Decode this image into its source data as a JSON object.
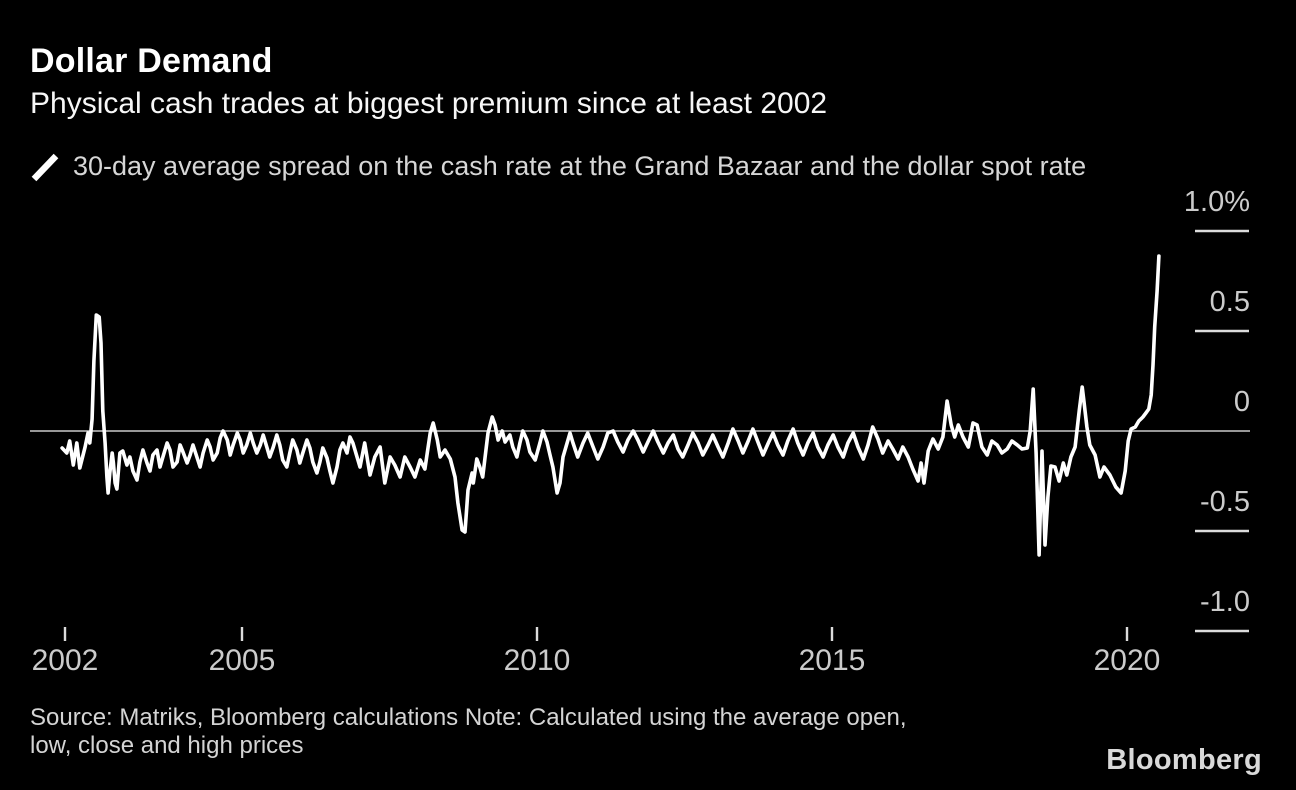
{
  "header": {
    "title": "Dollar Demand",
    "subtitle": "Physical cash trades at biggest premium since at least 2002"
  },
  "legend": {
    "label": "30-day average spread on the cash rate at the Grand Bazaar and the dollar spot rate",
    "marker": "diagonal-line",
    "marker_color": "#ffffff"
  },
  "footer": {
    "source_lines": [
      "Source: Matriks, Bloomberg calculations Note: Calculated using the average open,",
      "low, close and high prices"
    ],
    "logo": "Bloomberg"
  },
  "colors": {
    "background": "#000000",
    "line": "#ffffff",
    "zero_gridline": "#c9c9c9",
    "tick": "#dcdcdc",
    "label": "#cbcbcb"
  },
  "chart_data": {
    "type": "line",
    "title": "Dollar Demand",
    "subtitle": "Physical cash trades at biggest premium since at least 2002",
    "xlabel": "",
    "ylabel": "%",
    "xlim": [
      2001.4,
      2021.1
    ],
    "ylim": [
      -1.0,
      1.0
    ],
    "grid": "zero-line-only",
    "legend_position": "top-left",
    "y_axis": {
      "side": "right",
      "ticks": [
        {
          "value": 1.0,
          "label": "1.0%"
        },
        {
          "value": 0.5,
          "label": "0.5"
        },
        {
          "value": 0,
          "label": "0"
        },
        {
          "value": -0.5,
          "label": "-0.5"
        },
        {
          "value": -1.0,
          "label": "-1.0"
        }
      ]
    },
    "x_axis": {
      "ticks": [
        {
          "value": 2002,
          "label": "2002"
        },
        {
          "value": 2005,
          "label": "2005"
        },
        {
          "value": 2010,
          "label": "2010"
        },
        {
          "value": 2015,
          "label": "2015"
        },
        {
          "value": 2020,
          "label": "2020"
        }
      ]
    },
    "series": [
      {
        "name": "30-day average spread on the cash rate at the Grand Bazaar and the dollar spot rate",
        "color": "#ffffff",
        "points": [
          [
            2001.95,
            -0.085
          ],
          [
            2002.03,
            -0.11
          ],
          [
            2002.08,
            -0.05
          ],
          [
            2002.14,
            -0.17
          ],
          [
            2002.2,
            -0.06
          ],
          [
            2002.25,
            -0.185
          ],
          [
            2002.34,
            -0.08
          ],
          [
            2002.39,
            -0.01
          ],
          [
            2002.42,
            -0.06
          ],
          [
            2002.46,
            0.06
          ],
          [
            2002.49,
            0.35
          ],
          [
            2002.53,
            0.58
          ],
          [
            2002.58,
            0.57
          ],
          [
            2002.61,
            0.44
          ],
          [
            2002.64,
            0.1
          ],
          [
            2002.68,
            -0.06
          ],
          [
            2002.71,
            -0.23
          ],
          [
            2002.73,
            -0.31
          ],
          [
            2002.76,
            -0.21
          ],
          [
            2002.8,
            -0.11
          ],
          [
            2002.82,
            -0.16
          ],
          [
            2002.85,
            -0.26
          ],
          [
            2002.88,
            -0.29
          ],
          [
            2002.93,
            -0.11
          ],
          [
            2002.98,
            -0.1
          ],
          [
            2003.05,
            -0.17
          ],
          [
            2003.1,
            -0.13
          ],
          [
            2003.15,
            -0.2
          ],
          [
            2003.22,
            -0.245
          ],
          [
            2003.27,
            -0.155
          ],
          [
            2003.32,
            -0.095
          ],
          [
            2003.39,
            -0.16
          ],
          [
            2003.44,
            -0.2
          ],
          [
            2003.49,
            -0.12
          ],
          [
            2003.56,
            -0.095
          ],
          [
            2003.61,
            -0.18
          ],
          [
            2003.66,
            -0.13
          ],
          [
            2003.73,
            -0.06
          ],
          [
            2003.78,
            -0.095
          ],
          [
            2003.83,
            -0.18
          ],
          [
            2003.9,
            -0.155
          ],
          [
            2003.95,
            -0.07
          ],
          [
            2004.0,
            -0.105
          ],
          [
            2004.07,
            -0.16
          ],
          [
            2004.12,
            -0.12
          ],
          [
            2004.17,
            -0.07
          ],
          [
            2004.24,
            -0.135
          ],
          [
            2004.29,
            -0.18
          ],
          [
            2004.34,
            -0.11
          ],
          [
            2004.41,
            -0.045
          ],
          [
            2004.46,
            -0.08
          ],
          [
            2004.51,
            -0.145
          ],
          [
            2004.58,
            -0.11
          ],
          [
            2004.63,
            -0.035
          ],
          [
            2004.68,
            0.0
          ],
          [
            2004.75,
            -0.045
          ],
          [
            2004.8,
            -0.12
          ],
          [
            2004.85,
            -0.07
          ],
          [
            2004.92,
            -0.01
          ],
          [
            2004.97,
            -0.045
          ],
          [
            2005.02,
            -0.11
          ],
          [
            2005.08,
            -0.07
          ],
          [
            2005.14,
            -0.01
          ],
          [
            2005.19,
            -0.06
          ],
          [
            2005.25,
            -0.11
          ],
          [
            2005.31,
            -0.07
          ],
          [
            2005.36,
            -0.02
          ],
          [
            2005.42,
            -0.08
          ],
          [
            2005.47,
            -0.13
          ],
          [
            2005.53,
            -0.08
          ],
          [
            2005.59,
            -0.02
          ],
          [
            2005.64,
            -0.07
          ],
          [
            2005.69,
            -0.145
          ],
          [
            2005.76,
            -0.18
          ],
          [
            2005.81,
            -0.11
          ],
          [
            2005.86,
            -0.045
          ],
          [
            2005.93,
            -0.095
          ],
          [
            2005.98,
            -0.16
          ],
          [
            2006.03,
            -0.11
          ],
          [
            2006.1,
            -0.045
          ],
          [
            2006.15,
            -0.085
          ],
          [
            2006.2,
            -0.155
          ],
          [
            2006.27,
            -0.21
          ],
          [
            2006.32,
            -0.155
          ],
          [
            2006.37,
            -0.085
          ],
          [
            2006.44,
            -0.135
          ],
          [
            2006.49,
            -0.2
          ],
          [
            2006.54,
            -0.26
          ],
          [
            2006.61,
            -0.18
          ],
          [
            2006.66,
            -0.095
          ],
          [
            2006.71,
            -0.06
          ],
          [
            2006.78,
            -0.11
          ],
          [
            2006.83,
            -0.03
          ],
          [
            2006.88,
            -0.06
          ],
          [
            2007.0,
            -0.18
          ],
          [
            2007.08,
            -0.06
          ],
          [
            2007.17,
            -0.22
          ],
          [
            2007.25,
            -0.13
          ],
          [
            2007.34,
            -0.08
          ],
          [
            2007.42,
            -0.26
          ],
          [
            2007.51,
            -0.13
          ],
          [
            2007.59,
            -0.17
          ],
          [
            2007.68,
            -0.23
          ],
          [
            2007.76,
            -0.13
          ],
          [
            2007.85,
            -0.18
          ],
          [
            2007.93,
            -0.23
          ],
          [
            2008.02,
            -0.145
          ],
          [
            2008.1,
            -0.19
          ],
          [
            2008.19,
            -0.01
          ],
          [
            2008.24,
            0.04
          ],
          [
            2008.31,
            -0.045
          ],
          [
            2008.36,
            -0.13
          ],
          [
            2008.44,
            -0.095
          ],
          [
            2008.53,
            -0.14
          ],
          [
            2008.61,
            -0.23
          ],
          [
            2008.66,
            -0.36
          ],
          [
            2008.73,
            -0.495
          ],
          [
            2008.78,
            -0.505
          ],
          [
            2008.83,
            -0.295
          ],
          [
            2008.9,
            -0.21
          ],
          [
            2008.92,
            -0.26
          ],
          [
            2008.98,
            -0.14
          ],
          [
            2009.03,
            -0.18
          ],
          [
            2009.08,
            -0.23
          ],
          [
            2009.17,
            -0.01
          ],
          [
            2009.24,
            0.07
          ],
          [
            2009.29,
            0.03
          ],
          [
            2009.34,
            -0.045
          ],
          [
            2009.41,
            0.0
          ],
          [
            2009.46,
            -0.055
          ],
          [
            2009.54,
            -0.02
          ],
          [
            2009.59,
            -0.08
          ],
          [
            2009.66,
            -0.13
          ],
          [
            2009.71,
            -0.06
          ],
          [
            2009.76,
            0.0
          ],
          [
            2009.83,
            -0.045
          ],
          [
            2009.88,
            -0.105
          ],
          [
            2009.97,
            -0.145
          ],
          [
            2010.05,
            -0.06
          ],
          [
            2010.1,
            0.0
          ],
          [
            2010.17,
            -0.055
          ],
          [
            2010.22,
            -0.12
          ],
          [
            2010.27,
            -0.18
          ],
          [
            2010.34,
            -0.31
          ],
          [
            2010.39,
            -0.26
          ],
          [
            2010.44,
            -0.13
          ],
          [
            2010.51,
            -0.06
          ],
          [
            2010.56,
            -0.01
          ],
          [
            2010.61,
            -0.06
          ],
          [
            2010.69,
            -0.13
          ],
          [
            2010.78,
            -0.06
          ],
          [
            2010.86,
            -0.01
          ],
          [
            2010.95,
            -0.08
          ],
          [
            2011.03,
            -0.14
          ],
          [
            2011.12,
            -0.08
          ],
          [
            2011.2,
            -0.01
          ],
          [
            2011.29,
            0.0
          ],
          [
            2011.37,
            -0.055
          ],
          [
            2011.46,
            -0.105
          ],
          [
            2011.54,
            -0.045
          ],
          [
            2011.63,
            0.0
          ],
          [
            2011.71,
            -0.045
          ],
          [
            2011.8,
            -0.105
          ],
          [
            2011.88,
            -0.055
          ],
          [
            2011.97,
            0.0
          ],
          [
            2012.05,
            -0.055
          ],
          [
            2012.14,
            -0.11
          ],
          [
            2012.22,
            -0.06
          ],
          [
            2012.31,
            -0.02
          ],
          [
            2012.39,
            -0.09
          ],
          [
            2012.47,
            -0.13
          ],
          [
            2012.56,
            -0.07
          ],
          [
            2012.64,
            -0.01
          ],
          [
            2012.73,
            -0.06
          ],
          [
            2012.81,
            -0.12
          ],
          [
            2012.9,
            -0.07
          ],
          [
            2012.98,
            -0.02
          ],
          [
            2013.07,
            -0.08
          ],
          [
            2013.15,
            -0.13
          ],
          [
            2013.24,
            -0.06
          ],
          [
            2013.32,
            0.01
          ],
          [
            2013.41,
            -0.05
          ],
          [
            2013.49,
            -0.11
          ],
          [
            2013.58,
            -0.05
          ],
          [
            2013.66,
            0.01
          ],
          [
            2013.75,
            -0.06
          ],
          [
            2013.83,
            -0.12
          ],
          [
            2013.92,
            -0.06
          ],
          [
            2014.0,
            -0.01
          ],
          [
            2014.08,
            -0.07
          ],
          [
            2014.17,
            -0.12
          ],
          [
            2014.25,
            -0.05
          ],
          [
            2014.34,
            0.01
          ],
          [
            2014.42,
            -0.06
          ],
          [
            2014.51,
            -0.12
          ],
          [
            2014.59,
            -0.06
          ],
          [
            2014.68,
            -0.01
          ],
          [
            2014.76,
            -0.08
          ],
          [
            2014.85,
            -0.13
          ],
          [
            2014.93,
            -0.07
          ],
          [
            2015.02,
            -0.02
          ],
          [
            2015.1,
            -0.08
          ],
          [
            2015.19,
            -0.13
          ],
          [
            2015.27,
            -0.06
          ],
          [
            2015.36,
            -0.01
          ],
          [
            2015.44,
            -0.08
          ],
          [
            2015.53,
            -0.14
          ],
          [
            2015.61,
            -0.07
          ],
          [
            2015.69,
            0.02
          ],
          [
            2015.78,
            -0.04
          ],
          [
            2015.86,
            -0.11
          ],
          [
            2015.95,
            -0.05
          ],
          [
            2016.03,
            -0.09
          ],
          [
            2016.12,
            -0.14
          ],
          [
            2016.2,
            -0.08
          ],
          [
            2016.29,
            -0.13
          ],
          [
            2016.37,
            -0.19
          ],
          [
            2016.46,
            -0.25
          ],
          [
            2016.51,
            -0.16
          ],
          [
            2016.56,
            -0.26
          ],
          [
            2016.63,
            -0.1
          ],
          [
            2016.71,
            -0.04
          ],
          [
            2016.8,
            -0.09
          ],
          [
            2016.88,
            -0.03
          ],
          [
            2016.95,
            0.15
          ],
          [
            2017.02,
            0.03
          ],
          [
            2017.08,
            -0.03
          ],
          [
            2017.14,
            0.03
          ],
          [
            2017.22,
            -0.03
          ],
          [
            2017.31,
            -0.08
          ],
          [
            2017.39,
            0.04
          ],
          [
            2017.46,
            0.03
          ],
          [
            2017.54,
            -0.08
          ],
          [
            2017.63,
            -0.12
          ],
          [
            2017.71,
            -0.05
          ],
          [
            2017.8,
            -0.07
          ],
          [
            2017.88,
            -0.11
          ],
          [
            2017.97,
            -0.09
          ],
          [
            2018.05,
            -0.05
          ],
          [
            2018.14,
            -0.07
          ],
          [
            2018.22,
            -0.09
          ],
          [
            2018.31,
            -0.085
          ],
          [
            2018.36,
            0.0
          ],
          [
            2018.41,
            0.21
          ],
          [
            2018.46,
            -0.11
          ],
          [
            2018.51,
            -0.62
          ],
          [
            2018.56,
            -0.1
          ],
          [
            2018.61,
            -0.57
          ],
          [
            2018.66,
            -0.33
          ],
          [
            2018.71,
            -0.175
          ],
          [
            2018.78,
            -0.18
          ],
          [
            2018.85,
            -0.25
          ],
          [
            2018.92,
            -0.16
          ],
          [
            2018.98,
            -0.22
          ],
          [
            2019.05,
            -0.13
          ],
          [
            2019.12,
            -0.08
          ],
          [
            2019.19,
            0.1
          ],
          [
            2019.24,
            0.22
          ],
          [
            2019.27,
            0.15
          ],
          [
            2019.32,
            0.02
          ],
          [
            2019.37,
            -0.07
          ],
          [
            2019.46,
            -0.12
          ],
          [
            2019.54,
            -0.23
          ],
          [
            2019.61,
            -0.18
          ],
          [
            2019.71,
            -0.22
          ],
          [
            2019.81,
            -0.28
          ],
          [
            2019.9,
            -0.31
          ],
          [
            2019.97,
            -0.2
          ],
          [
            2020.02,
            -0.05
          ],
          [
            2020.07,
            0.01
          ],
          [
            2020.14,
            0.02
          ],
          [
            2020.2,
            0.05
          ],
          [
            2020.27,
            0.07
          ],
          [
            2020.32,
            0.09
          ],
          [
            2020.37,
            0.11
          ],
          [
            2020.41,
            0.18
          ],
          [
            2020.44,
            0.33
          ],
          [
            2020.47,
            0.52
          ],
          [
            2020.51,
            0.7
          ],
          [
            2020.54,
            0.875
          ]
        ]
      }
    ]
  }
}
